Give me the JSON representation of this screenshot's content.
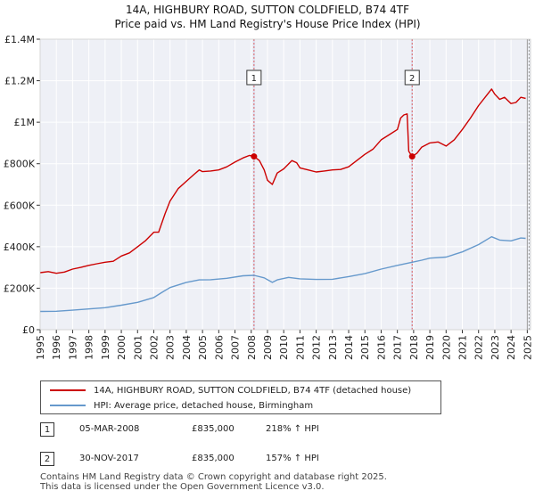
{
  "chart_data": {
    "type": "line",
    "title": "14A, HIGHBURY ROAD, SUTTON COLDFIELD, B74 4TF",
    "subtitle": "Price paid vs. HM Land Registry's House Price Index (HPI)",
    "xlabel": "",
    "ylabel": "",
    "xlim": [
      1995,
      2025.2
    ],
    "ylim": [
      0,
      1400000
    ],
    "x_ticks": [
      1995,
      1996,
      1997,
      1998,
      1999,
      2000,
      2001,
      2002,
      2003,
      2004,
      2005,
      2006,
      2007,
      2008,
      2009,
      2010,
      2011,
      2012,
      2013,
      2014,
      2015,
      2016,
      2017,
      2018,
      2019,
      2020,
      2021,
      2022,
      2023,
      2024,
      2025
    ],
    "y_ticks": [
      {
        "value": 0,
        "label": "£0"
      },
      {
        "value": 200000,
        "label": "£200K"
      },
      {
        "value": 400000,
        "label": "£400K"
      },
      {
        "value": 600000,
        "label": "£600K"
      },
      {
        "value": 800000,
        "label": "£800K"
      },
      {
        "value": 1000000,
        "label": "£1M"
      },
      {
        "value": 1200000,
        "label": "£1.2M"
      },
      {
        "value": 1400000,
        "label": "£1.4M"
      }
    ],
    "grid": true,
    "series": [
      {
        "name": "14A, HIGHBURY ROAD, SUTTON COLDFIELD, B74 4TF (detached house)",
        "color": "#cc0000",
        "points": [
          [
            1995.0,
            275000
          ],
          [
            1995.5,
            280000
          ],
          [
            1996.0,
            272000
          ],
          [
            1996.5,
            278000
          ],
          [
            1997.0,
            292000
          ],
          [
            1997.5,
            300000
          ],
          [
            1998.0,
            310000
          ],
          [
            1998.5,
            318000
          ],
          [
            1999.0,
            325000
          ],
          [
            1999.5,
            330000
          ],
          [
            2000.0,
            355000
          ],
          [
            2000.5,
            370000
          ],
          [
            2001.0,
            400000
          ],
          [
            2001.5,
            430000
          ],
          [
            2002.0,
            470000
          ],
          [
            2002.3,
            470000
          ],
          [
            2002.7,
            560000
          ],
          [
            2003.0,
            620000
          ],
          [
            2003.5,
            680000
          ],
          [
            2004.0,
            715000
          ],
          [
            2004.5,
            750000
          ],
          [
            2004.8,
            770000
          ],
          [
            2005.0,
            762000
          ],
          [
            2005.5,
            765000
          ],
          [
            2006.0,
            770000
          ],
          [
            2006.5,
            785000
          ],
          [
            2007.0,
            808000
          ],
          [
            2007.5,
            828000
          ],
          [
            2007.9,
            840000
          ],
          [
            2008.17,
            835000
          ],
          [
            2008.5,
            815000
          ],
          [
            2008.8,
            770000
          ],
          [
            2009.0,
            720000
          ],
          [
            2009.3,
            700000
          ],
          [
            2009.6,
            755000
          ],
          [
            2010.0,
            775000
          ],
          [
            2010.5,
            815000
          ],
          [
            2010.8,
            805000
          ],
          [
            2011.0,
            780000
          ],
          [
            2011.5,
            770000
          ],
          [
            2012.0,
            760000
          ],
          [
            2012.5,
            765000
          ],
          [
            2013.0,
            770000
          ],
          [
            2013.5,
            772000
          ],
          [
            2014.0,
            785000
          ],
          [
            2014.5,
            815000
          ],
          [
            2015.0,
            845000
          ],
          [
            2015.5,
            870000
          ],
          [
            2016.0,
            915000
          ],
          [
            2016.5,
            940000
          ],
          [
            2017.0,
            965000
          ],
          [
            2017.2,
            1020000
          ],
          [
            2017.4,
            1035000
          ],
          [
            2017.6,
            1040000
          ],
          [
            2017.7,
            860000
          ],
          [
            2017.91,
            835000
          ],
          [
            2018.2,
            850000
          ],
          [
            2018.5,
            880000
          ],
          [
            2019.0,
            900000
          ],
          [
            2019.5,
            905000
          ],
          [
            2020.0,
            885000
          ],
          [
            2020.5,
            915000
          ],
          [
            2021.0,
            965000
          ],
          [
            2021.5,
            1020000
          ],
          [
            2022.0,
            1080000
          ],
          [
            2022.5,
            1130000
          ],
          [
            2022.8,
            1160000
          ],
          [
            2023.0,
            1135000
          ],
          [
            2023.3,
            1110000
          ],
          [
            2023.6,
            1120000
          ],
          [
            2024.0,
            1090000
          ],
          [
            2024.3,
            1095000
          ],
          [
            2024.6,
            1120000
          ],
          [
            2024.9,
            1115000
          ]
        ]
      },
      {
        "name": "HPI: Average price, detached house, Birmingham",
        "color": "#6699cc",
        "points": [
          [
            1995.0,
            88000
          ],
          [
            1996.0,
            89000
          ],
          [
            1997.0,
            94000
          ],
          [
            1998.0,
            100000
          ],
          [
            1999.0,
            106000
          ],
          [
            2000.0,
            118000
          ],
          [
            2001.0,
            132000
          ],
          [
            2002.0,
            155000
          ],
          [
            2002.5,
            180000
          ],
          [
            2003.0,
            203000
          ],
          [
            2004.0,
            228000
          ],
          [
            2004.8,
            240000
          ],
          [
            2005.5,
            241000
          ],
          [
            2006.5,
            248000
          ],
          [
            2007.5,
            260000
          ],
          [
            2008.17,
            262000
          ],
          [
            2008.8,
            250000
          ],
          [
            2009.3,
            228000
          ],
          [
            2009.6,
            240000
          ],
          [
            2010.3,
            252000
          ],
          [
            2011.0,
            245000
          ],
          [
            2012.0,
            242000
          ],
          [
            2013.0,
            243000
          ],
          [
            2014.0,
            256000
          ],
          [
            2015.0,
            270000
          ],
          [
            2016.0,
            292000
          ],
          [
            2017.0,
            310000
          ],
          [
            2017.91,
            325000
          ],
          [
            2018.5,
            335000
          ],
          [
            2019.0,
            345000
          ],
          [
            2020.0,
            350000
          ],
          [
            2021.0,
            375000
          ],
          [
            2022.0,
            410000
          ],
          [
            2022.8,
            448000
          ],
          [
            2023.3,
            432000
          ],
          [
            2024.0,
            428000
          ],
          [
            2024.6,
            442000
          ],
          [
            2024.9,
            440000
          ]
        ]
      }
    ],
    "sales": [
      {
        "label": "1",
        "x": 2008.17,
        "price": 835000
      },
      {
        "label": "2",
        "x": 2017.91,
        "price": 835000
      }
    ],
    "end_marker_x": 2025.0
  },
  "legend": {
    "property_label": "14A, HIGHBURY ROAD, SUTTON COLDFIELD, B74 4TF (detached house)",
    "hpi_label": "HPI: Average price, detached house, Birmingham",
    "property_color": "#cc0000",
    "hpi_color": "#6699cc"
  },
  "sales_table": [
    {
      "num": "1",
      "date": "05-MAR-2008",
      "price": "£835,000",
      "hpi": "218% ↑ HPI"
    },
    {
      "num": "2",
      "date": "30-NOV-2017",
      "price": "£835,000",
      "hpi": "157% ↑ HPI"
    }
  ],
  "footer": {
    "line1": "Contains HM Land Registry data © Crown copyright and database right 2025.",
    "line2": "This data is licensed under the Open Government Licence v3.0."
  }
}
